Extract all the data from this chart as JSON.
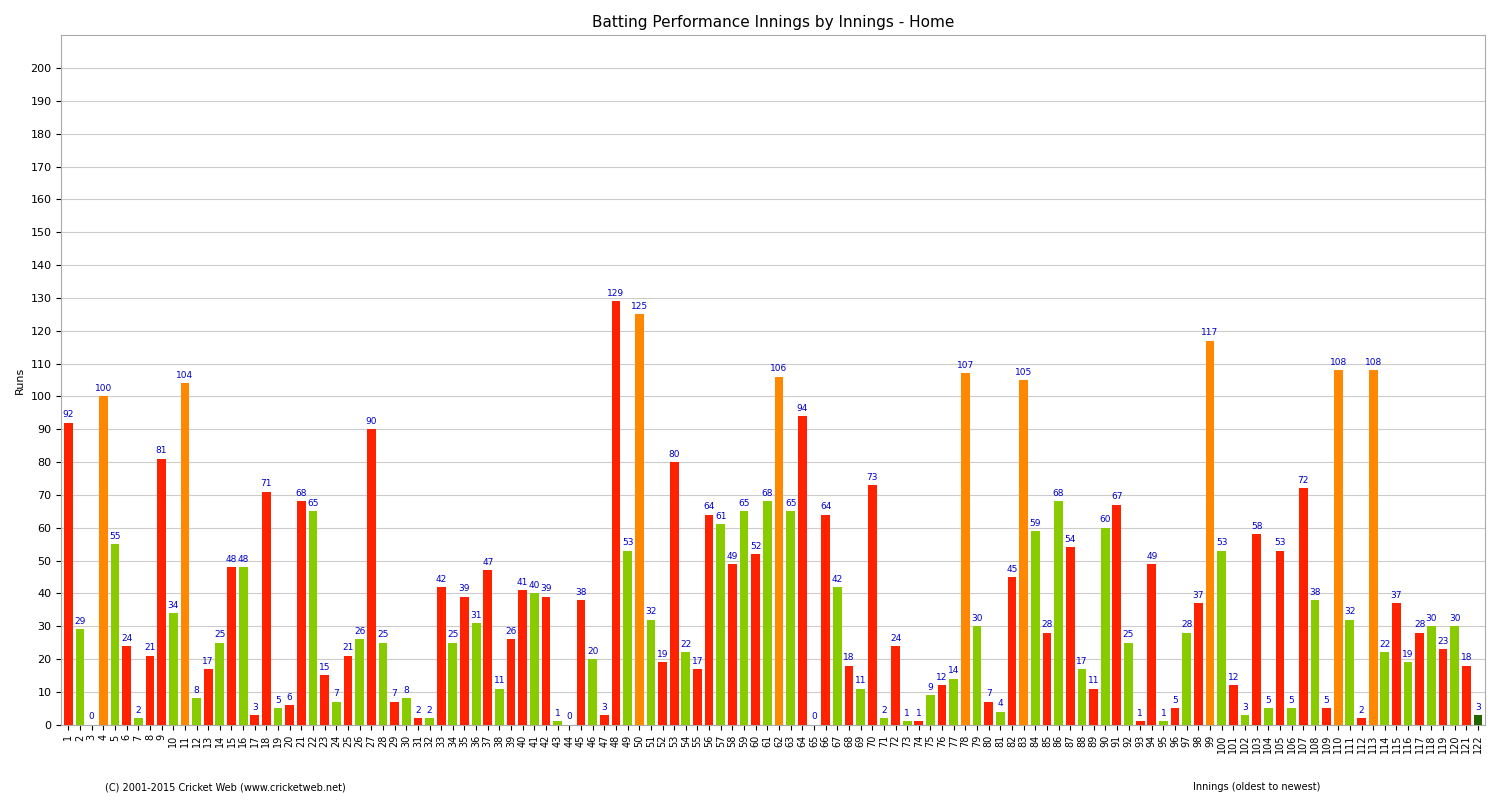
{
  "title": "Batting Performance Innings by Innings - Home",
  "ylabel": "Runs",
  "xlabel_bottom": "Innings (oldest to newest)",
  "copyright": "(C) 2001-2015 Cricket Web (www.cricketweb.net)",
  "background_color": "#ffffff",
  "grid_color": "#cccccc",
  "ylim": [
    0,
    210
  ],
  "yticks": [
    0,
    10,
    20,
    30,
    40,
    50,
    60,
    70,
    80,
    90,
    100,
    110,
    120,
    130,
    140,
    150,
    160,
    170,
    180,
    190,
    200
  ],
  "innings": [
    {
      "score": 92,
      "dismissal": "out",
      "itype": 1
    },
    {
      "score": 29,
      "dismissal": "out",
      "itype": 2
    },
    {
      "score": 0,
      "dismissal": "out",
      "itype": 1
    },
    {
      "score": 100,
      "dismissal": "not_out",
      "itype": 1
    },
    {
      "score": 55,
      "dismissal": "out",
      "itype": 2
    },
    {
      "score": 24,
      "dismissal": "out",
      "itype": 1
    },
    {
      "score": 2,
      "dismissal": "out",
      "itype": 2
    },
    {
      "score": 21,
      "dismissal": "out",
      "itype": 1
    },
    {
      "score": 81,
      "dismissal": "out",
      "itype": 1
    },
    {
      "score": 34,
      "dismissal": "out",
      "itype": 2
    },
    {
      "score": 104,
      "dismissal": "not_out",
      "itype": 1
    },
    {
      "score": 8,
      "dismissal": "out",
      "itype": 2
    },
    {
      "score": 17,
      "dismissal": "out",
      "itype": 1
    },
    {
      "score": 25,
      "dismissal": "out",
      "itype": 2
    },
    {
      "score": 48,
      "dismissal": "out",
      "itype": 1
    },
    {
      "score": 48,
      "dismissal": "out",
      "itype": 2
    },
    {
      "score": 3,
      "dismissal": "out",
      "itype": 1
    },
    {
      "score": 71,
      "dismissal": "out",
      "itype": 1
    },
    {
      "score": 5,
      "dismissal": "out",
      "itype": 2
    },
    {
      "score": 6,
      "dismissal": "out",
      "itype": 1
    },
    {
      "score": 68,
      "dismissal": "out",
      "itype": 1
    },
    {
      "score": 65,
      "dismissal": "out",
      "itype": 2
    },
    {
      "score": 15,
      "dismissal": "out",
      "itype": 1
    },
    {
      "score": 7,
      "dismissal": "out",
      "itype": 2
    },
    {
      "score": 21,
      "dismissal": "out",
      "itype": 1
    },
    {
      "score": 26,
      "dismissal": "out",
      "itype": 2
    },
    {
      "score": 90,
      "dismissal": "out",
      "itype": 1
    },
    {
      "score": 25,
      "dismissal": "out",
      "itype": 2
    },
    {
      "score": 7,
      "dismissal": "out",
      "itype": 1
    },
    {
      "score": 8,
      "dismissal": "out",
      "itype": 2
    },
    {
      "score": 2,
      "dismissal": "out",
      "itype": 1
    },
    {
      "score": 2,
      "dismissal": "out",
      "itype": 2
    },
    {
      "score": 42,
      "dismissal": "out",
      "itype": 1
    },
    {
      "score": 25,
      "dismissal": "out",
      "itype": 2
    },
    {
      "score": 39,
      "dismissal": "out",
      "itype": 1
    },
    {
      "score": 31,
      "dismissal": "out",
      "itype": 2
    },
    {
      "score": 47,
      "dismissal": "out",
      "itype": 1
    },
    {
      "score": 11,
      "dismissal": "out",
      "itype": 2
    },
    {
      "score": 26,
      "dismissal": "out",
      "itype": 1
    },
    {
      "score": 41,
      "dismissal": "out",
      "itype": 1
    },
    {
      "score": 40,
      "dismissal": "out",
      "itype": 2
    },
    {
      "score": 39,
      "dismissal": "out",
      "itype": 1
    },
    {
      "score": 1,
      "dismissal": "out",
      "itype": 2
    },
    {
      "score": 0,
      "dismissal": "out",
      "itype": 1
    },
    {
      "score": 38,
      "dismissal": "out",
      "itype": 1
    },
    {
      "score": 20,
      "dismissal": "out",
      "itype": 2
    },
    {
      "score": 3,
      "dismissal": "out",
      "itype": 1
    },
    {
      "score": 129,
      "dismissal": "out",
      "itype": 1
    },
    {
      "score": 53,
      "dismissal": "out",
      "itype": 2
    },
    {
      "score": 125,
      "dismissal": "not_out",
      "itype": 1
    },
    {
      "score": 32,
      "dismissal": "out",
      "itype": 2
    },
    {
      "score": 19,
      "dismissal": "out",
      "itype": 1
    },
    {
      "score": 80,
      "dismissal": "out",
      "itype": 1
    },
    {
      "score": 22,
      "dismissal": "out",
      "itype": 2
    },
    {
      "score": 17,
      "dismissal": "out",
      "itype": 1
    },
    {
      "score": 64,
      "dismissal": "out",
      "itype": 1
    },
    {
      "score": 61,
      "dismissal": "out",
      "itype": 2
    },
    {
      "score": 49,
      "dismissal": "out",
      "itype": 1
    },
    {
      "score": 65,
      "dismissal": "out",
      "itype": 2
    },
    {
      "score": 52,
      "dismissal": "out",
      "itype": 1
    },
    {
      "score": 68,
      "dismissal": "out",
      "itype": 2
    },
    {
      "score": 106,
      "dismissal": "not_out",
      "itype": 1
    },
    {
      "score": 65,
      "dismissal": "out",
      "itype": 2
    },
    {
      "score": 94,
      "dismissal": "out",
      "itype": 1
    },
    {
      "score": 0,
      "dismissal": "out",
      "itype": 2
    },
    {
      "score": 64,
      "dismissal": "out",
      "itype": 1
    },
    {
      "score": 42,
      "dismissal": "out",
      "itype": 2
    },
    {
      "score": 18,
      "dismissal": "out",
      "itype": 1
    },
    {
      "score": 11,
      "dismissal": "out",
      "itype": 2
    },
    {
      "score": 73,
      "dismissal": "out",
      "itype": 1
    },
    {
      "score": 2,
      "dismissal": "out",
      "itype": 2
    },
    {
      "score": 24,
      "dismissal": "out",
      "itype": 1
    },
    {
      "score": 1,
      "dismissal": "out",
      "itype": 2
    },
    {
      "score": 1,
      "dismissal": "out",
      "itype": 1
    },
    {
      "score": 9,
      "dismissal": "out",
      "itype": 2
    },
    {
      "score": 12,
      "dismissal": "out",
      "itype": 1
    },
    {
      "score": 14,
      "dismissal": "out",
      "itype": 2
    },
    {
      "score": 107,
      "dismissal": "not_out",
      "itype": 1
    },
    {
      "score": 30,
      "dismissal": "out",
      "itype": 2
    },
    {
      "score": 7,
      "dismissal": "out",
      "itype": 1
    },
    {
      "score": 4,
      "dismissal": "out",
      "itype": 2
    },
    {
      "score": 45,
      "dismissal": "out",
      "itype": 1
    },
    {
      "score": 105,
      "dismissal": "not_out",
      "itype": 1
    },
    {
      "score": 59,
      "dismissal": "out",
      "itype": 2
    },
    {
      "score": 28,
      "dismissal": "out",
      "itype": 1
    },
    {
      "score": 68,
      "dismissal": "out",
      "itype": 2
    },
    {
      "score": 54,
      "dismissal": "out",
      "itype": 1
    },
    {
      "score": 17,
      "dismissal": "out",
      "itype": 2
    },
    {
      "score": 11,
      "dismissal": "out",
      "itype": 1
    },
    {
      "score": 60,
      "dismissal": "out",
      "itype": 2
    },
    {
      "score": 67,
      "dismissal": "out",
      "itype": 1
    },
    {
      "score": 25,
      "dismissal": "out",
      "itype": 2
    },
    {
      "score": 1,
      "dismissal": "out",
      "itype": 1
    },
    {
      "score": 49,
      "dismissal": "out",
      "itype": 1
    },
    {
      "score": 1,
      "dismissal": "out",
      "itype": 2
    },
    {
      "score": 5,
      "dismissal": "out",
      "itype": 1
    },
    {
      "score": 28,
      "dismissal": "out",
      "itype": 2
    },
    {
      "score": 37,
      "dismissal": "out",
      "itype": 1
    },
    {
      "score": 117,
      "dismissal": "not_out",
      "itype": 1
    },
    {
      "score": 53,
      "dismissal": "out",
      "itype": 2
    },
    {
      "score": 12,
      "dismissal": "out",
      "itype": 1
    },
    {
      "score": 3,
      "dismissal": "out",
      "itype": 2
    },
    {
      "score": 58,
      "dismissal": "out",
      "itype": 1
    },
    {
      "score": 5,
      "dismissal": "out",
      "itype": 2
    },
    {
      "score": 53,
      "dismissal": "out",
      "itype": 1
    },
    {
      "score": 5,
      "dismissal": "out",
      "itype": 2
    },
    {
      "score": 72,
      "dismissal": "out",
      "itype": 1
    },
    {
      "score": 38,
      "dismissal": "out",
      "itype": 2
    },
    {
      "score": 5,
      "dismissal": "out",
      "itype": 1
    },
    {
      "score": 108,
      "dismissal": "not_out",
      "itype": 1
    },
    {
      "score": 32,
      "dismissal": "out",
      "itype": 2
    },
    {
      "score": 2,
      "dismissal": "out",
      "itype": 1
    },
    {
      "score": 108,
      "dismissal": "not_out",
      "itype": 1
    },
    {
      "score": 22,
      "dismissal": "out",
      "itype": 2
    },
    {
      "score": 37,
      "dismissal": "out",
      "itype": 1
    },
    {
      "score": 19,
      "dismissal": "out",
      "itype": 2
    },
    {
      "score": 28,
      "dismissal": "out",
      "itype": 1
    },
    {
      "score": 30,
      "dismissal": "out",
      "itype": 2
    },
    {
      "score": 23,
      "dismissal": "out",
      "itype": 1
    },
    {
      "score": 30,
      "dismissal": "out",
      "itype": 2
    },
    {
      "score": 18,
      "dismissal": "out",
      "itype": 1
    },
    {
      "score": 3,
      "dismissal": "not_out",
      "itype": 2
    }
  ],
  "colors": {
    "1_out": "#ff2200",
    "1_not_out": "#ff8800",
    "2_out": "#88cc00",
    "2_not_out": "#226600"
  },
  "label_color": "#0000cc",
  "label_fontsize": 6.5,
  "axis_fontsize": 8,
  "title_fontsize": 11,
  "tick_fontsize": 7
}
